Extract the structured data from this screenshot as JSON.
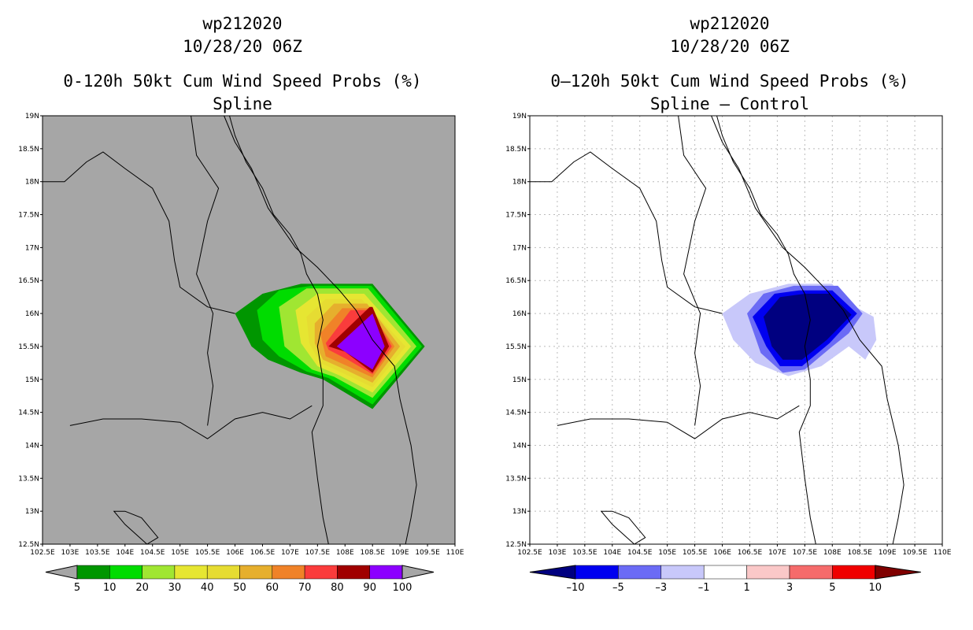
{
  "left": {
    "storm_id": "wp212020",
    "datetime": "10/28/20 06Z",
    "product": "0-120h 50kt Cum Wind Speed Probs (%)",
    "subtitle": "Spline"
  },
  "right": {
    "storm_id": "wp212020",
    "datetime": "10/28/20 06Z",
    "product": "0–120h 50kt Cum Wind Speed Probs (%)",
    "subtitle": "Spline – Control"
  },
  "chart_data": [
    {
      "type": "heatmap",
      "title": "0-120h 50kt Cum Wind Speed Probs (%) — Spline",
      "x_range": [
        102.5,
        110
      ],
      "y_range": [
        12.5,
        19
      ],
      "x_ticks": [
        "102.5E",
        "103E",
        "103.5E",
        "104E",
        "104.5E",
        "105E",
        "105.5E",
        "106E",
        "106.5E",
        "107E",
        "107.5E",
        "108E",
        "108.5E",
        "109E",
        "109.5E",
        "110E"
      ],
      "y_ticks": [
        "12.5N",
        "13N",
        "13.5N",
        "14N",
        "14.5N",
        "15N",
        "15.5N",
        "16N",
        "16.5N",
        "17N",
        "17.5N",
        "18N",
        "18.5N",
        "19N"
      ],
      "background": "#a6a6a6",
      "colorbar": {
        "labels": [
          "5",
          "10",
          "20",
          "30",
          "40",
          "50",
          "60",
          "70",
          "80",
          "90",
          "100"
        ],
        "colors": [
          "#009600",
          "#00dc00",
          "#a0e632",
          "#e6e632",
          "#e6dc32",
          "#e6af2d",
          "#f08228",
          "#fa3c3c",
          "#a00000",
          "#8c00ff"
        ]
      },
      "contours": [
        {
          "level": 5,
          "color": "#009600",
          "points": [
            [
              106.0,
              16.0
            ],
            [
              106.5,
              16.3
            ],
            [
              107.2,
              16.45
            ],
            [
              108.5,
              16.45
            ],
            [
              109.45,
              15.5
            ],
            [
              108.5,
              14.55
            ],
            [
              107.6,
              15.0
            ],
            [
              107.2,
              15.1
            ],
            [
              106.6,
              15.3
            ],
            [
              106.3,
              15.5
            ]
          ]
        },
        {
          "level": 10,
          "color": "#00dc00",
          "points": [
            [
              106.4,
              16.05
            ],
            [
              106.8,
              16.35
            ],
            [
              107.4,
              16.42
            ],
            [
              108.48,
              16.42
            ],
            [
              109.4,
              15.5
            ],
            [
              108.5,
              14.62
            ],
            [
              107.7,
              15.02
            ],
            [
              107.3,
              15.12
            ],
            [
              106.8,
              15.35
            ],
            [
              106.5,
              15.6
            ]
          ]
        },
        {
          "level": 20,
          "color": "#a0e632",
          "points": [
            [
              106.8,
              16.1
            ],
            [
              107.3,
              16.38
            ],
            [
              108.42,
              16.38
            ],
            [
              109.3,
              15.5
            ],
            [
              108.5,
              14.72
            ],
            [
              107.8,
              15.04
            ],
            [
              107.4,
              15.15
            ],
            [
              106.9,
              15.5
            ]
          ]
        },
        {
          "level": 30,
          "color": "#e6e632",
          "points": [
            [
              107.1,
              16.05
            ],
            [
              107.5,
              16.3
            ],
            [
              108.35,
              16.3
            ],
            [
              109.2,
              15.5
            ],
            [
              108.5,
              14.8
            ],
            [
              107.9,
              15.06
            ],
            [
              107.5,
              15.2
            ],
            [
              107.2,
              15.55
            ]
          ]
        },
        {
          "level": 40,
          "color": "#e6dc32",
          "points": [
            [
              107.3,
              15.95
            ],
            [
              107.65,
              16.22
            ],
            [
              108.3,
              16.22
            ],
            [
              109.1,
              15.5
            ],
            [
              108.5,
              14.88
            ],
            [
              107.95,
              15.1
            ],
            [
              107.55,
              15.25
            ],
            [
              107.35,
              15.55
            ]
          ]
        },
        {
          "level": 50,
          "color": "#e6af2d",
          "points": [
            [
              107.45,
              15.85
            ],
            [
              107.8,
              16.15
            ],
            [
              108.4,
              16.15
            ],
            [
              109.0,
              15.5
            ],
            [
              108.5,
              14.95
            ],
            [
              108.0,
              15.15
            ],
            [
              107.6,
              15.3
            ],
            [
              107.45,
              15.55
            ]
          ]
        },
        {
          "level": 60,
          "color": "#f08228",
          "points": [
            [
              107.55,
              15.7
            ],
            [
              107.95,
              16.08
            ],
            [
              108.42,
              16.08
            ],
            [
              108.9,
              15.5
            ],
            [
              108.5,
              15.03
            ],
            [
              108.05,
              15.2
            ],
            [
              107.65,
              15.35
            ]
          ]
        },
        {
          "level": 70,
          "color": "#fa3c3c",
          "points": [
            [
              107.65,
              15.55
            ],
            [
              108.1,
              16.05
            ],
            [
              108.45,
              16.05
            ],
            [
              108.85,
              15.5
            ],
            [
              108.5,
              15.08
            ],
            [
              108.05,
              15.3
            ],
            [
              107.7,
              15.45
            ]
          ]
        },
        {
          "level": 80,
          "color": "#a00000",
          "points": [
            [
              107.7,
              15.5
            ],
            [
              108.45,
              16.1
            ],
            [
              108.5,
              16.1
            ],
            [
              108.8,
              15.5
            ],
            [
              108.5,
              15.1
            ],
            [
              108.0,
              15.42
            ]
          ]
        },
        {
          "level": 100,
          "color": "#8c00ff",
          "points": [
            [
              107.85,
              15.5
            ],
            [
              108.5,
              16.0
            ],
            [
              108.72,
              15.5
            ],
            [
              108.5,
              15.15
            ]
          ]
        }
      ]
    },
    {
      "type": "heatmap",
      "title": "0–120h 50kt Cum Wind Speed Probs (%) — Spline – Control",
      "x_range": [
        102.5,
        110
      ],
      "y_range": [
        12.5,
        19
      ],
      "x_ticks": [
        "102.5E",
        "103E",
        "103.5E",
        "104E",
        "104.5E",
        "105E",
        "105.5E",
        "106E",
        "106.5E",
        "107E",
        "107.5E",
        "108E",
        "108.5E",
        "109E",
        "109.5E",
        "110E"
      ],
      "y_ticks": [
        "12.5N",
        "13N",
        "13.5N",
        "14N",
        "14.5N",
        "15N",
        "15.5N",
        "16N",
        "16.5N",
        "17N",
        "17.5N",
        "18N",
        "18.5N",
        "19N"
      ],
      "background": "#ffffff",
      "colorbar": {
        "labels": [
          "–10",
          "–5",
          "–3",
          "–1",
          "1",
          "3",
          "5",
          "10"
        ],
        "colors": [
          "#000080",
          "#0000f0",
          "#6b6bf5",
          "#c8c8fa",
          "#ffffff",
          "#fac8c8",
          "#f56b6b",
          "#f00000",
          "#800000"
        ]
      },
      "contours": [
        {
          "level": -1,
          "color": "#c8c8fa",
          "points": [
            [
              106.0,
              16.0
            ],
            [
              106.5,
              16.3
            ],
            [
              107.2,
              16.45
            ],
            [
              108.0,
              16.45
            ],
            [
              108.2,
              16.2
            ],
            [
              108.75,
              15.95
            ],
            [
              108.8,
              15.6
            ],
            [
              108.6,
              15.3
            ],
            [
              108.3,
              15.5
            ],
            [
              107.8,
              15.2
            ],
            [
              107.2,
              15.05
            ],
            [
              106.6,
              15.25
            ],
            [
              106.2,
              15.6
            ]
          ]
        },
        {
          "level": -3,
          "color": "#6b6bf5",
          "points": [
            [
              106.45,
              16.0
            ],
            [
              106.75,
              16.3
            ],
            [
              107.3,
              16.42
            ],
            [
              108.1,
              16.42
            ],
            [
              108.55,
              16.0
            ],
            [
              108.3,
              15.7
            ],
            [
              108.0,
              15.5
            ],
            [
              107.5,
              15.15
            ],
            [
              107.1,
              15.1
            ],
            [
              106.7,
              15.4
            ]
          ]
        },
        {
          "level": -5,
          "color": "#0000f0",
          "points": [
            [
              106.55,
              15.95
            ],
            [
              106.95,
              16.3
            ],
            [
              107.4,
              16.35
            ],
            [
              108.0,
              16.35
            ],
            [
              108.45,
              16.0
            ],
            [
              107.95,
              15.55
            ],
            [
              107.45,
              15.2
            ],
            [
              107.05,
              15.2
            ],
            [
              106.8,
              15.5
            ]
          ]
        },
        {
          "level": -10,
          "color": "#000080",
          "points": [
            [
              106.75,
              15.95
            ],
            [
              107.05,
              16.25
            ],
            [
              107.5,
              16.3
            ],
            [
              107.95,
              16.3
            ],
            [
              108.35,
              15.98
            ],
            [
              107.9,
              15.6
            ],
            [
              107.45,
              15.3
            ],
            [
              107.1,
              15.3
            ],
            [
              106.9,
              15.5
            ]
          ]
        }
      ]
    }
  ]
}
